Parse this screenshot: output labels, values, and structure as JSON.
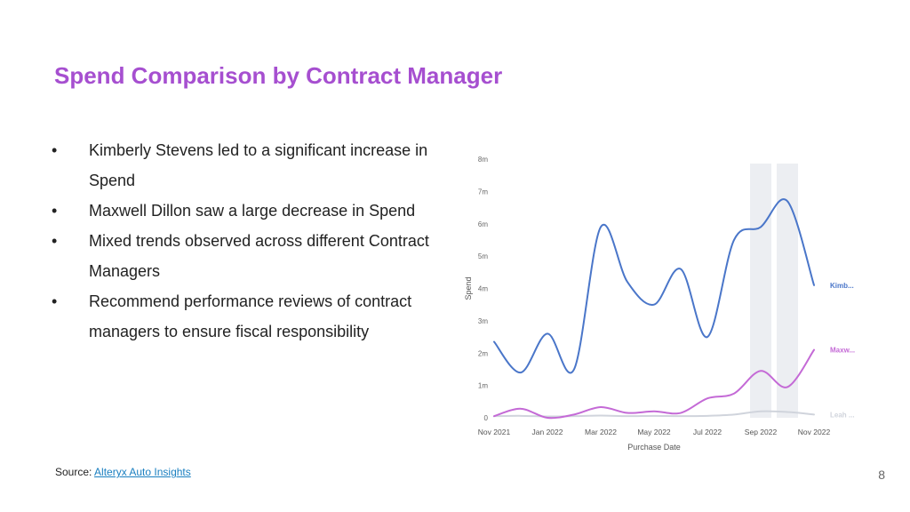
{
  "slide": {
    "title": "Spend Comparison by Contract Manager",
    "bullets": [
      "Kimberly Stevens led to a significant increase in Spend",
      "Maxwell Dillon saw a large decrease in Spend",
      "Mixed trends observed across different Contract Managers",
      "Recommend performance reviews of contract managers to ensure fiscal responsibility"
    ],
    "bullet_symbol": "•",
    "source_label": "Source: ",
    "source_link": "Alteryx Auto Insights",
    "page_number": "8"
  },
  "chart_data": {
    "type": "line",
    "xlabel": "Purchase Date",
    "ylabel": "Spend",
    "ylim": [
      0,
      8
    ],
    "y_ticks": [
      "0",
      "1m",
      "2m",
      "3m",
      "4m",
      "5m",
      "6m",
      "7m",
      "8m"
    ],
    "x_tick_labels": [
      "Nov 2021",
      "Jan 2022",
      "Mar 2022",
      "May 2022",
      "Jul 2022",
      "Sep 2022",
      "Nov 2022"
    ],
    "x": [
      "Nov 2021",
      "Dec 2021",
      "Jan 2022",
      "Feb 2022",
      "Mar 2022",
      "Apr 2022",
      "May 2022",
      "Jun 2022",
      "Jul 2022",
      "Aug 2022",
      "Sep 2022",
      "Oct 2022",
      "Nov 2022"
    ],
    "highlight_bands": [
      "Sep 2022",
      "Oct 2022"
    ],
    "grid": false,
    "series": [
      {
        "name": "Kimb...",
        "color": "#4a76c9",
        "values": [
          2.35,
          1.4,
          2.6,
          1.5,
          5.9,
          4.2,
          3.5,
          4.6,
          2.5,
          5.5,
          5.9,
          6.7,
          4.1
        ]
      },
      {
        "name": "Maxw...",
        "color": "#c46ad6",
        "values": [
          0.05,
          0.28,
          0.0,
          0.1,
          0.33,
          0.15,
          0.2,
          0.15,
          0.6,
          0.75,
          1.45,
          0.95,
          2.1
        ]
      },
      {
        "name": "Leah ...",
        "color": "#d0d4dc",
        "values": [
          0.05,
          0.06,
          0.04,
          0.05,
          0.07,
          0.05,
          0.06,
          0.05,
          0.06,
          0.1,
          0.2,
          0.18,
          0.1
        ]
      }
    ]
  }
}
